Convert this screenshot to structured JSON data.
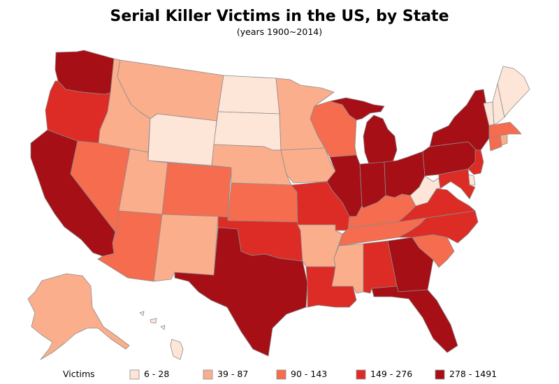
{
  "title": "Serial Killer Victims in the US, by State",
  "subtitle": "(years 1900~2014)",
  "legend": {
    "label": "Victims",
    "bins": [
      {
        "label": "6 - 28",
        "color": "#fde5d8"
      },
      {
        "label": "39 - 87",
        "color": "#fbae8c"
      },
      {
        "label": "90 - 143",
        "color": "#f56c4e"
      },
      {
        "label": "149 - 276",
        "color": "#dc2c25"
      },
      {
        "label": "278 - 1491",
        "color": "#a50f15"
      }
    ]
  },
  "states": [
    {
      "code": "WA",
      "bin": 4
    },
    {
      "code": "OR",
      "bin": 3
    },
    {
      "code": "CA",
      "bin": 4
    },
    {
      "code": "NV",
      "bin": 2
    },
    {
      "code": "ID",
      "bin": 1
    },
    {
      "code": "MT",
      "bin": 1
    },
    {
      "code": "WY",
      "bin": 0
    },
    {
      "code": "UT",
      "bin": 1
    },
    {
      "code": "AZ",
      "bin": 2
    },
    {
      "code": "CO",
      "bin": 2
    },
    {
      "code": "NM",
      "bin": 1
    },
    {
      "code": "ND",
      "bin": 0
    },
    {
      "code": "SD",
      "bin": 0
    },
    {
      "code": "NE",
      "bin": 1
    },
    {
      "code": "KS",
      "bin": 2
    },
    {
      "code": "OK",
      "bin": 3
    },
    {
      "code": "TX",
      "bin": 4
    },
    {
      "code": "MN",
      "bin": 1
    },
    {
      "code": "IA",
      "bin": 1
    },
    {
      "code": "MO",
      "bin": 3
    },
    {
      "code": "AR",
      "bin": 1
    },
    {
      "code": "LA",
      "bin": 3
    },
    {
      "code": "WI",
      "bin": 2
    },
    {
      "code": "IL",
      "bin": 4
    },
    {
      "code": "MI",
      "bin": 4
    },
    {
      "code": "IN",
      "bin": 4
    },
    {
      "code": "OH",
      "bin": 4
    },
    {
      "code": "KY",
      "bin": 2
    },
    {
      "code": "TN",
      "bin": 2
    },
    {
      "code": "MS",
      "bin": 1
    },
    {
      "code": "AL",
      "bin": 3
    },
    {
      "code": "GA",
      "bin": 4
    },
    {
      "code": "FL",
      "bin": 4
    },
    {
      "code": "SC",
      "bin": 2
    },
    {
      "code": "NC",
      "bin": 3
    },
    {
      "code": "VA",
      "bin": 3
    },
    {
      "code": "WV",
      "bin": 0
    },
    {
      "code": "PA",
      "bin": 4
    },
    {
      "code": "NY",
      "bin": 4
    },
    {
      "code": "NJ",
      "bin": 3
    },
    {
      "code": "DE",
      "bin": 0
    },
    {
      "code": "MD",
      "bin": 3
    },
    {
      "code": "CT",
      "bin": 2
    },
    {
      "code": "RI",
      "bin": 1
    },
    {
      "code": "MA",
      "bin": 2
    },
    {
      "code": "VT",
      "bin": 0
    },
    {
      "code": "NH",
      "bin": 0
    },
    {
      "code": "ME",
      "bin": 0
    },
    {
      "code": "AK",
      "bin": 1
    },
    {
      "code": "HI",
      "bin": 0
    }
  ]
}
